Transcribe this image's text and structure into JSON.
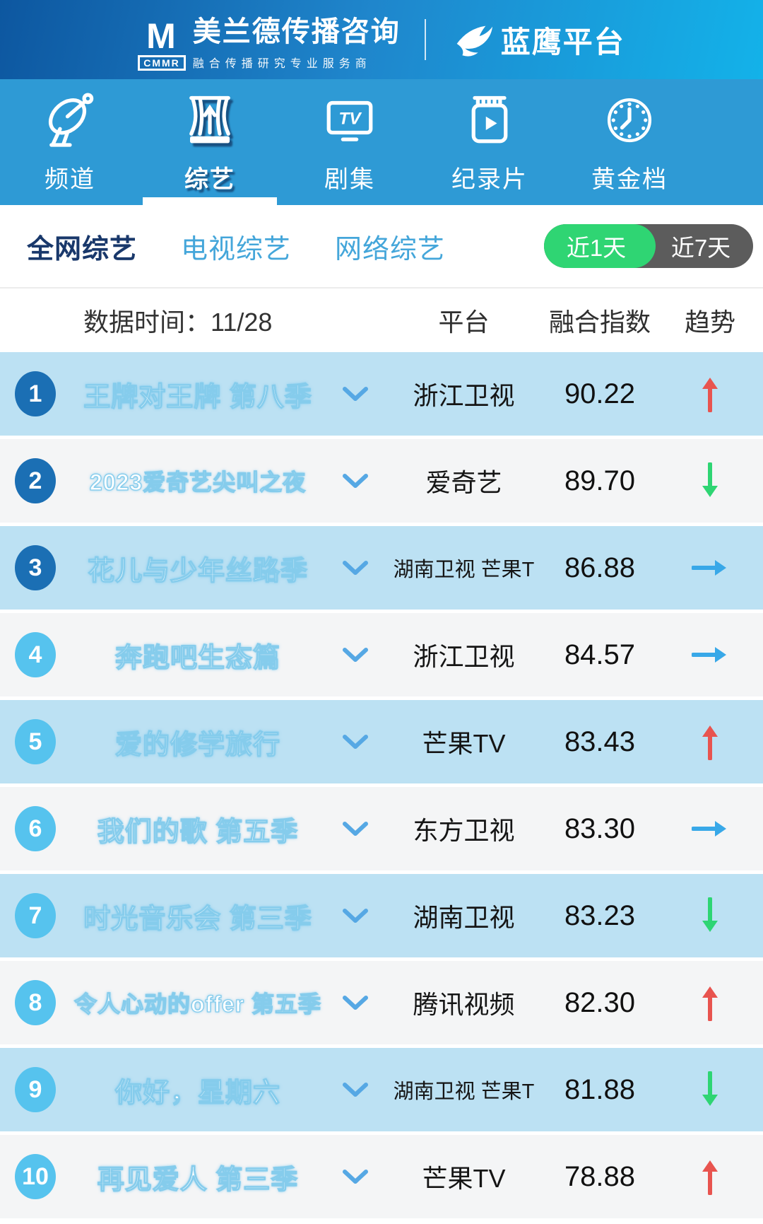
{
  "header": {
    "logo_m": "M",
    "logo_cmmr": "CMMR",
    "brand_title": "美兰德传播咨询",
    "brand_tagline": "融合传播研究专业服务商",
    "platform_name": "蓝鹰平台"
  },
  "nav": {
    "tabs": [
      {
        "label": "频道",
        "icon": "satellite-dish-icon",
        "active": false
      },
      {
        "label": "综艺",
        "icon": "stage-curtain-icon",
        "active": true
      },
      {
        "label": "剧集",
        "icon": "tv-icon",
        "active": false
      },
      {
        "label": "纪录片",
        "icon": "documentary-icon",
        "active": false
      },
      {
        "label": "黄金档",
        "icon": "clock-icon",
        "active": false
      }
    ]
  },
  "filters": {
    "tabs": [
      {
        "label": "全网综艺",
        "active": true
      },
      {
        "label": "电视综艺",
        "active": false
      },
      {
        "label": "网络综艺",
        "active": false
      }
    ],
    "range_toggle": {
      "active_option": "近1天",
      "inactive_option": "近7天"
    }
  },
  "table": {
    "date_label": "数据时间：11/28",
    "col_platform": "平台",
    "col_index": "融合指数",
    "col_trend": "趋势"
  },
  "rows": [
    {
      "rank": 1,
      "title": "王牌对王牌 第八季",
      "platform": "浙江卫视",
      "score": "90.22",
      "trend": "up"
    },
    {
      "rank": 2,
      "title": "2023爱奇艺尖叫之夜",
      "platform": "爱奇艺",
      "score": "89.70",
      "trend": "down"
    },
    {
      "rank": 3,
      "title": "花儿与少年丝路季",
      "platform": "湖南卫视 芒果T",
      "score": "86.88",
      "trend": "flat"
    },
    {
      "rank": 4,
      "title": "奔跑吧生态篇",
      "platform": "浙江卫视",
      "score": "84.57",
      "trend": "flat"
    },
    {
      "rank": 5,
      "title": "爱的修学旅行",
      "platform": "芒果TV",
      "score": "83.43",
      "trend": "up"
    },
    {
      "rank": 6,
      "title": "我们的歌 第五季",
      "platform": "东方卫视",
      "score": "83.30",
      "trend": "flat"
    },
    {
      "rank": 7,
      "title": "时光音乐会 第三季",
      "platform": "湖南卫视",
      "score": "83.23",
      "trend": "down"
    },
    {
      "rank": 8,
      "title": "令人心动的offer 第五季",
      "platform": "腾讯视频",
      "score": "82.30",
      "trend": "up"
    },
    {
      "rank": 9,
      "title": "你好，星期六",
      "platform": "湖南卫视 芒果T",
      "score": "81.88",
      "trend": "down"
    },
    {
      "rank": 10,
      "title": "再见爱人 第三季",
      "platform": "芒果TV",
      "score": "78.88",
      "trend": "up"
    }
  ],
  "colors": {
    "trend_up": "#e8544f",
    "trend_down": "#2ed573",
    "trend_flat": "#38a8e8",
    "badge_top3": "#1b6fb4",
    "badge_rest": "#56c3ee",
    "toggle_active": "#2fd573",
    "row_alt_blue": "#bce1f3"
  }
}
